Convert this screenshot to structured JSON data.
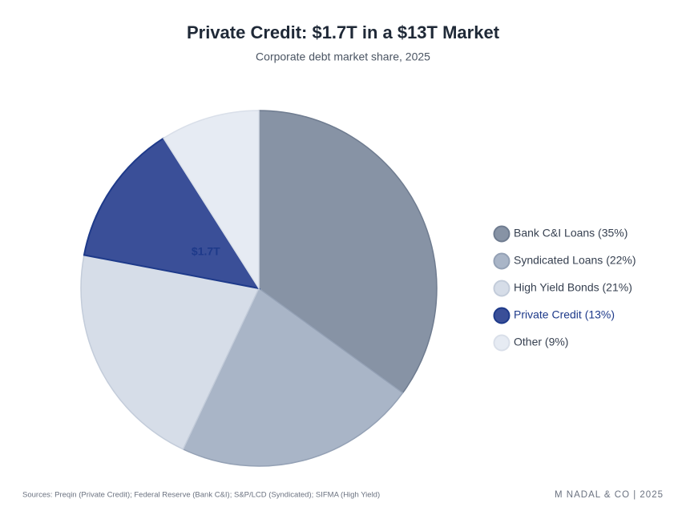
{
  "chart_data": {
    "type": "pie",
    "title": "Private Credit: $1.7T in a $13T Market",
    "subtitle": "Corporate debt market share, 2025",
    "categories": [
      "Bank C&I Loans (35%)",
      "Syndicated Loans (22%)",
      "High Yield Bonds (21%)",
      "Private Credit (13%)",
      "Other (9%)"
    ],
    "values": [
      35,
      22,
      21,
      13,
      9
    ],
    "colors": [
      "#8793a5",
      "#a9b5c7",
      "#d6dde8",
      "#3a4f98",
      "#e6ebf3"
    ],
    "stroke_colors": [
      "#6f7c90",
      "#94a1b5",
      "#c3ccda",
      "#1e3a8a",
      "#d9dfe9"
    ],
    "legend_text_colors": [
      "#374151",
      "#374151",
      "#374151",
      "#1e3a8a",
      "#374151"
    ],
    "legend": "right",
    "annotation": {
      "text": "$1.7T",
      "category_index": 3,
      "color": "#1e3a8a"
    },
    "source": "Sources: Preqin (Private Credit); Federal Reserve (Bank C&I); S&P/LCD (Syndicated); SIFMA (High Yield)",
    "credit": "M NADAL & CO | 2025"
  }
}
